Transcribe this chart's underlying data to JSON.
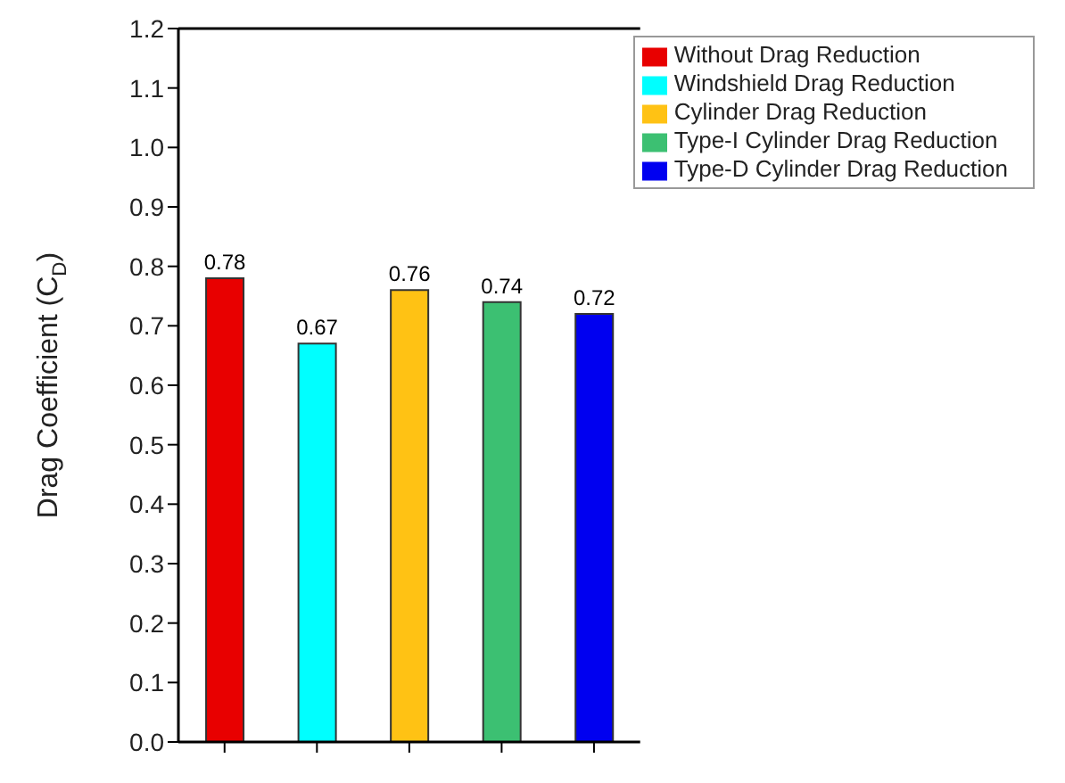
{
  "chart_data": {
    "type": "bar",
    "ylabel": "Drag Coefficient (C$_{D}$)",
    "categories": [
      null,
      null,
      null,
      null,
      null
    ],
    "series": [
      {
        "name": "Without Drag Reduction",
        "color": "#e80000",
        "values": [
          0.78,
          null,
          null,
          null,
          null
        ]
      },
      {
        "name": "Windshield Drag Reduction",
        "color": "#00ffff",
        "values": [
          null,
          0.67,
          null,
          null,
          null
        ]
      },
      {
        "name": "Cylinder Drag Reduction",
        "color": "#ffc214",
        "values": [
          null,
          null,
          0.76,
          null,
          null
        ]
      },
      {
        "name": "Type-I Cylinder Drag Reduction",
        "color": "#3cc072",
        "values": [
          null,
          null,
          null,
          0.74,
          null
        ]
      },
      {
        "name": "Type-D Cylinder Drag Reduction",
        "color": "#0000f0",
        "values": [
          null,
          null,
          null,
          null,
          0.72
        ]
      }
    ],
    "ylim": [
      0,
      1.2
    ],
    "yticks": [
      {
        "value": 0,
        "label": "0.0"
      },
      0.1,
      0.2,
      0.3,
      0.4,
      0.5,
      0.6,
      0.7,
      0.8,
      0.9,
      {
        "value": 1,
        "label": "1.0"
      },
      1.1,
      1.2
    ],
    "data_labels": true,
    "grid": false,
    "legend": "top right"
  }
}
